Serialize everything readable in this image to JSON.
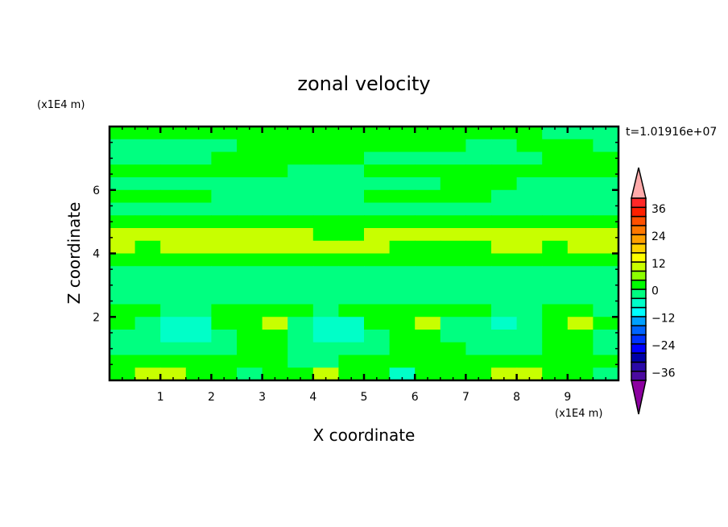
{
  "chart_data": {
    "type": "heatmap",
    "title": "zonal velocity",
    "xlabel": "X coordinate",
    "ylabel": "Z coordinate",
    "x_unit": "(x1E4 m)",
    "y_unit": "(x1E4 m)",
    "time_label": "t=1.01916e+07",
    "xlim": [
      0,
      10
    ],
    "ylim": [
      0,
      8
    ],
    "xticks": [
      1,
      2,
      3,
      4,
      5,
      6,
      7,
      8,
      9
    ],
    "yticks": [
      2,
      4,
      6
    ],
    "grid": false,
    "colorbar": {
      "levels": [
        -40,
        -36,
        -32,
        -28,
        -24,
        -20,
        -16,
        -12,
        -8,
        -4,
        0,
        4,
        8,
        12,
        16,
        20,
        24,
        28,
        32,
        36,
        40
      ],
      "colors": [
        "#4b0aa0",
        "#2a0aa8",
        "#0000a8",
        "#0000ff",
        "#0032ff",
        "#0064ff",
        "#00a0ff",
        "#00ffff",
        "#00ffc8",
        "#00ff80",
        "#00ff00",
        "#8cff00",
        "#c8ff00",
        "#ffff00",
        "#ffd200",
        "#ffa000",
        "#ff7800",
        "#ff5000",
        "#ff2000",
        "#ff2828"
      ],
      "over_color": "#ffaaaa",
      "under_color": "#8c00a0",
      "tick_labels": [
        "36",
        "24",
        "12",
        "0",
        "-12",
        "-24",
        "-36"
      ],
      "tick_values": [
        36,
        24,
        12,
        0,
        -12,
        -24,
        -36
      ],
      "placement": "right"
    },
    "grid_x_step": 0.5,
    "grid_z_step": 0.4,
    "values_top_to_bottom": [
      [
        3,
        3,
        3,
        3,
        3,
        3,
        3,
        3,
        3,
        3,
        3,
        3,
        3,
        3,
        3,
        3,
        3,
        -3,
        -3,
        -3
      ],
      [
        -3,
        -3,
        -3,
        -3,
        -3,
        3,
        3,
        3,
        3,
        3,
        3,
        3,
        3,
        3,
        -3,
        -3,
        3,
        3,
        3,
        -3
      ],
      [
        -3,
        -3,
        -3,
        -3,
        3,
        3,
        3,
        3,
        3,
        3,
        -3,
        -3,
        -3,
        -3,
        -3,
        -3,
        -3,
        3,
        3,
        3
      ],
      [
        3,
        3,
        3,
        3,
        3,
        3,
        3,
        -3,
        -3,
        -3,
        3,
        3,
        3,
        3,
        3,
        3,
        3,
        3,
        3,
        3
      ],
      [
        -3,
        -3,
        -3,
        -3,
        -3,
        -3,
        -3,
        -3,
        -3,
        -3,
        -3,
        -3,
        -3,
        3,
        3,
        3,
        -3,
        -3,
        -3,
        -3
      ],
      [
        3,
        3,
        3,
        3,
        -3,
        -3,
        -3,
        -3,
        -3,
        -3,
        3,
        3,
        3,
        3,
        3,
        -3,
        -3,
        -3,
        -3,
        -3
      ],
      [
        -3,
        -3,
        -3,
        -3,
        -3,
        -3,
        -3,
        -3,
        -3,
        -3,
        -3,
        -3,
        -3,
        -3,
        -3,
        -3,
        -3,
        -3,
        -3,
        -3
      ],
      [
        3,
        3,
        3,
        3,
        3,
        3,
        3,
        3,
        3,
        3,
        3,
        3,
        3,
        3,
        3,
        3,
        3,
        3,
        3,
        3
      ],
      [
        8,
        8,
        8,
        8,
        8,
        8,
        8,
        8,
        3,
        3,
        8,
        8,
        8,
        8,
        8,
        8,
        8,
        8,
        8,
        8
      ],
      [
        8,
        3,
        8,
        8,
        8,
        8,
        8,
        8,
        8,
        8,
        8,
        3,
        3,
        3,
        3,
        8,
        8,
        3,
        8,
        8
      ],
      [
        3,
        3,
        3,
        3,
        3,
        3,
        3,
        3,
        3,
        3,
        3,
        3,
        3,
        3,
        3,
        3,
        3,
        3,
        3,
        3
      ],
      [
        -3,
        -3,
        -3,
        -3,
        -3,
        -3,
        -3,
        -3,
        -3,
        -3,
        -3,
        -3,
        -3,
        -3,
        -3,
        -3,
        -3,
        -3,
        -3,
        -3
      ],
      [
        -3,
        -3,
        -3,
        -3,
        -3,
        -3,
        -3,
        -3,
        -3,
        -3,
        -3,
        -3,
        -3,
        -3,
        -3,
        -3,
        -3,
        -3,
        -3,
        -3
      ],
      [
        -3,
        -3,
        -3,
        -3,
        -3,
        -3,
        -3,
        -3,
        -3,
        -3,
        -3,
        -3,
        -3,
        -3,
        -3,
        -3,
        -3,
        -3,
        -3,
        -3
      ],
      [
        3,
        3,
        -3,
        -3,
        3,
        3,
        3,
        3,
        -3,
        3,
        3,
        3,
        3,
        3,
        3,
        -3,
        -3,
        3,
        3,
        -3
      ],
      [
        3,
        -3,
        -8,
        -8,
        3,
        3,
        8,
        -3,
        -8,
        -8,
        3,
        3,
        8,
        -3,
        -3,
        -8,
        -3,
        3,
        8,
        3
      ],
      [
        -3,
        -3,
        -8,
        -8,
        -3,
        3,
        3,
        -3,
        -8,
        -8,
        -3,
        3,
        3,
        -3,
        -3,
        -3,
        -3,
        3,
        3,
        -3
      ],
      [
        -3,
        -3,
        -3,
        -3,
        -3,
        3,
        3,
        -3,
        -3,
        -3,
        -3,
        3,
        3,
        3,
        -3,
        -3,
        -3,
        3,
        3,
        -3
      ],
      [
        3,
        3,
        3,
        3,
        3,
        3,
        3,
        -3,
        -3,
        3,
        3,
        3,
        3,
        3,
        3,
        3,
        3,
        3,
        3,
        3
      ],
      [
        3,
        8,
        8,
        3,
        3,
        -3,
        3,
        3,
        8,
        3,
        3,
        -8,
        3,
        3,
        3,
        8,
        8,
        3,
        3,
        -3
      ]
    ]
  }
}
